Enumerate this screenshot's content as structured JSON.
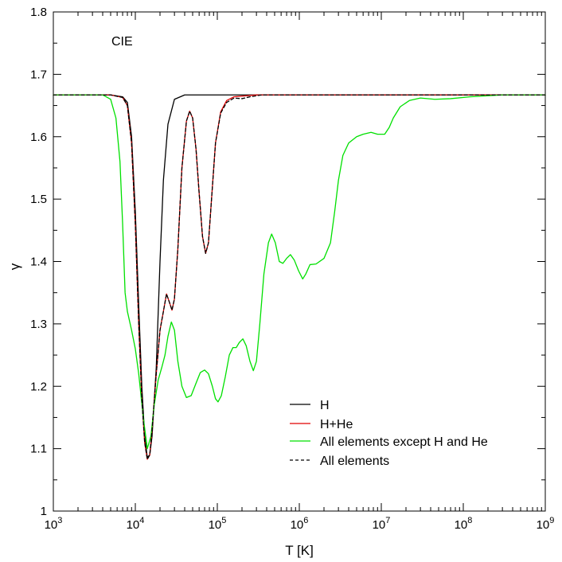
{
  "chart_data": {
    "type": "line",
    "title": "",
    "annotation": "CIE",
    "xlabel": "T [K]",
    "ylabel": "γ",
    "x_scale": "log",
    "xlim": [
      1000,
      1000000000
    ],
    "ylim": [
      1.0,
      1.8
    ],
    "x_tick_labels": [
      {
        "base": "10",
        "exp": "3",
        "value": 1000
      },
      {
        "base": "10",
        "exp": "4",
        "value": 10000
      },
      {
        "base": "10",
        "exp": "5",
        "value": 100000
      },
      {
        "base": "10",
        "exp": "6",
        "value": 1000000
      },
      {
        "base": "10",
        "exp": "7",
        "value": 10000000
      },
      {
        "base": "10",
        "exp": "8",
        "value": 100000000
      },
      {
        "base": "10",
        "exp": "9",
        "value": 1000000000
      }
    ],
    "y_ticks": [
      {
        "label": "1",
        "value": 1.0
      },
      {
        "label": "1.1",
        "value": 1.1
      },
      {
        "label": "1.2",
        "value": 1.2
      },
      {
        "label": "1.3",
        "value": 1.3
      },
      {
        "label": "1.4",
        "value": 1.4
      },
      {
        "label": "1.5",
        "value": 1.5
      },
      {
        "label": "1.6",
        "value": 1.6
      },
      {
        "label": "1.7",
        "value": 1.7
      },
      {
        "label": "1.8",
        "value": 1.8
      }
    ],
    "grid": false,
    "legend_position": "bottom-right",
    "series": [
      {
        "name": "H",
        "color": "#000000",
        "dash": "solid",
        "points": [
          [
            1000,
            1.667
          ],
          [
            5000,
            1.667
          ],
          [
            7000,
            1.664
          ],
          [
            8000,
            1.655
          ],
          [
            9000,
            1.6
          ],
          [
            10000,
            1.48
          ],
          [
            11000,
            1.33
          ],
          [
            12000,
            1.2
          ],
          [
            13000,
            1.12
          ],
          [
            14000,
            1.086
          ],
          [
            15000,
            1.09
          ],
          [
            16000,
            1.12
          ],
          [
            18000,
            1.23
          ],
          [
            20000,
            1.4
          ],
          [
            22000,
            1.53
          ],
          [
            25000,
            1.62
          ],
          [
            30000,
            1.66
          ],
          [
            40000,
            1.667
          ],
          [
            1000000000,
            1.667
          ]
        ]
      },
      {
        "name": "H+He",
        "color": "#e00000",
        "dash": "solid",
        "points": [
          [
            1000,
            1.667
          ],
          [
            5000,
            1.667
          ],
          [
            7000,
            1.663
          ],
          [
            8000,
            1.65
          ],
          [
            9000,
            1.59
          ],
          [
            10000,
            1.46
          ],
          [
            11000,
            1.3
          ],
          [
            12000,
            1.18
          ],
          [
            13000,
            1.11
          ],
          [
            14000,
            1.083
          ],
          [
            15000,
            1.09
          ],
          [
            16000,
            1.13
          ],
          [
            18000,
            1.22
          ],
          [
            20000,
            1.29
          ],
          [
            22000,
            1.32
          ],
          [
            24000,
            1.348
          ],
          [
            26000,
            1.335
          ],
          [
            28000,
            1.322
          ],
          [
            30000,
            1.34
          ],
          [
            33000,
            1.42
          ],
          [
            37000,
            1.55
          ],
          [
            42000,
            1.625
          ],
          [
            46000,
            1.641
          ],
          [
            50000,
            1.63
          ],
          [
            55000,
            1.58
          ],
          [
            60000,
            1.51
          ],
          [
            66000,
            1.44
          ],
          [
            72000,
            1.413
          ],
          [
            78000,
            1.43
          ],
          [
            85000,
            1.5
          ],
          [
            95000,
            1.59
          ],
          [
            110000,
            1.64
          ],
          [
            130000,
            1.658
          ],
          [
            160000,
            1.664
          ],
          [
            300000,
            1.667
          ],
          [
            1000000000,
            1.667
          ]
        ]
      },
      {
        "name": "All elements except H and He",
        "color": "#00e000",
        "dash": "solid",
        "points": [
          [
            1000,
            1.667
          ],
          [
            4000,
            1.667
          ],
          [
            5000,
            1.66
          ],
          [
            5800,
            1.63
          ],
          [
            6500,
            1.56
          ],
          [
            7000,
            1.46
          ],
          [
            7500,
            1.35
          ],
          [
            8000,
            1.32
          ],
          [
            9000,
            1.29
          ],
          [
            10000,
            1.26
          ],
          [
            11000,
            1.22
          ],
          [
            12500,
            1.15
          ],
          [
            14000,
            1.1
          ],
          [
            15500,
            1.12
          ],
          [
            17000,
            1.17
          ],
          [
            19000,
            1.21
          ],
          [
            21000,
            1.23
          ],
          [
            23000,
            1.25
          ],
          [
            25000,
            1.28
          ],
          [
            27500,
            1.303
          ],
          [
            30000,
            1.29
          ],
          [
            33000,
            1.24
          ],
          [
            37000,
            1.2
          ],
          [
            42000,
            1.182
          ],
          [
            48000,
            1.185
          ],
          [
            55000,
            1.205
          ],
          [
            62000,
            1.222
          ],
          [
            70000,
            1.226
          ],
          [
            78000,
            1.22
          ],
          [
            87000,
            1.2
          ],
          [
            95000,
            1.18
          ],
          [
            102000,
            1.175
          ],
          [
            112000,
            1.185
          ],
          [
            125000,
            1.215
          ],
          [
            140000,
            1.25
          ],
          [
            155000,
            1.262
          ],
          [
            170000,
            1.262
          ],
          [
            185000,
            1.27
          ],
          [
            205000,
            1.276
          ],
          [
            225000,
            1.265
          ],
          [
            250000,
            1.24
          ],
          [
            275000,
            1.225
          ],
          [
            300000,
            1.24
          ],
          [
            330000,
            1.3
          ],
          [
            370000,
            1.38
          ],
          [
            420000,
            1.43
          ],
          [
            460000,
            1.444
          ],
          [
            510000,
            1.43
          ],
          [
            570000,
            1.4
          ],
          [
            630000,
            1.397
          ],
          [
            700000,
            1.405
          ],
          [
            780000,
            1.411
          ],
          [
            870000,
            1.402
          ],
          [
            980000,
            1.385
          ],
          [
            1100000,
            1.372
          ],
          [
            1200000,
            1.38
          ],
          [
            1350000,
            1.395
          ],
          [
            1600000,
            1.396
          ],
          [
            2000000,
            1.405
          ],
          [
            2400000,
            1.43
          ],
          [
            2700000,
            1.48
          ],
          [
            3000000,
            1.53
          ],
          [
            3400000,
            1.57
          ],
          [
            4000000,
            1.59
          ],
          [
            5000000,
            1.6
          ],
          [
            6000000,
            1.604
          ],
          [
            7500000,
            1.607
          ],
          [
            9000000,
            1.604
          ],
          [
            11000000,
            1.604
          ],
          [
            12500000,
            1.615
          ],
          [
            14000000,
            1.63
          ],
          [
            17000000,
            1.648
          ],
          [
            22000000,
            1.658
          ],
          [
            30000000,
            1.662
          ],
          [
            45000000,
            1.66
          ],
          [
            70000000,
            1.661
          ],
          [
            120000000,
            1.664
          ],
          [
            300000000,
            1.667
          ],
          [
            1000000000,
            1.667
          ]
        ]
      },
      {
        "name": "All elements",
        "color": "#000000",
        "dash": "dashed",
        "points": [
          [
            1000,
            1.667
          ],
          [
            5000,
            1.667
          ],
          [
            7000,
            1.663
          ],
          [
            8000,
            1.65
          ],
          [
            9000,
            1.59
          ],
          [
            10000,
            1.46
          ],
          [
            11000,
            1.3
          ],
          [
            12000,
            1.18
          ],
          [
            13000,
            1.11
          ],
          [
            14000,
            1.083
          ],
          [
            15000,
            1.09
          ],
          [
            16000,
            1.13
          ],
          [
            18000,
            1.22
          ],
          [
            20000,
            1.29
          ],
          [
            22000,
            1.32
          ],
          [
            24000,
            1.348
          ],
          [
            26000,
            1.335
          ],
          [
            28000,
            1.322
          ],
          [
            30000,
            1.34
          ],
          [
            33000,
            1.42
          ],
          [
            37000,
            1.55
          ],
          [
            42000,
            1.625
          ],
          [
            46000,
            1.641
          ],
          [
            50000,
            1.63
          ],
          [
            55000,
            1.58
          ],
          [
            60000,
            1.51
          ],
          [
            66000,
            1.44
          ],
          [
            72000,
            1.413
          ],
          [
            78000,
            1.43
          ],
          [
            85000,
            1.5
          ],
          [
            95000,
            1.59
          ],
          [
            110000,
            1.638
          ],
          [
            130000,
            1.655
          ],
          [
            160000,
            1.662
          ],
          [
            200000,
            1.661
          ],
          [
            250000,
            1.664
          ],
          [
            350000,
            1.667
          ],
          [
            1000000000,
            1.667
          ]
        ]
      }
    ]
  }
}
